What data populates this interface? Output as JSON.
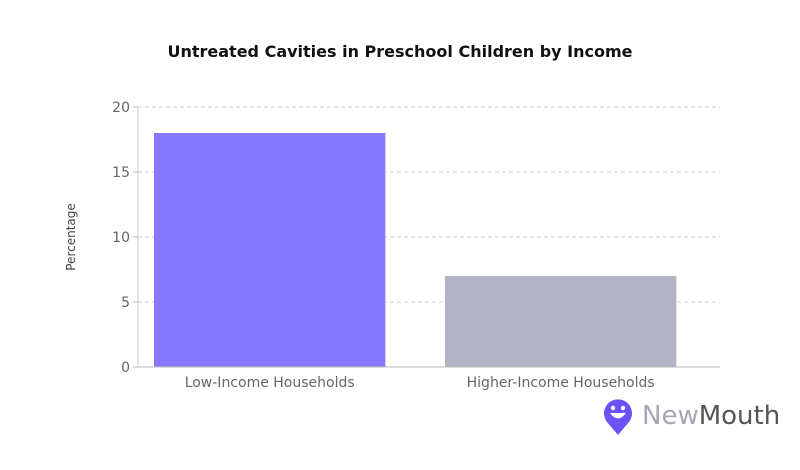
{
  "chart_data": {
    "type": "bar",
    "title": "Untreated Cavities in Preschool Children by Income",
    "ylabel": "Percentage",
    "xlabel": "",
    "categories": [
      "Low-Income Households",
      "Higher-Income Households"
    ],
    "values": [
      18,
      7
    ],
    "colors": [
      "#8878ff",
      "#b3b3c6"
    ],
    "ylim": [
      0,
      20
    ],
    "yticks": [
      0,
      5,
      10,
      15,
      20
    ],
    "grid": true
  },
  "logo": {
    "text_part1": "New",
    "text_part2": "Mouth",
    "brand_color": "#6c52f5"
  }
}
